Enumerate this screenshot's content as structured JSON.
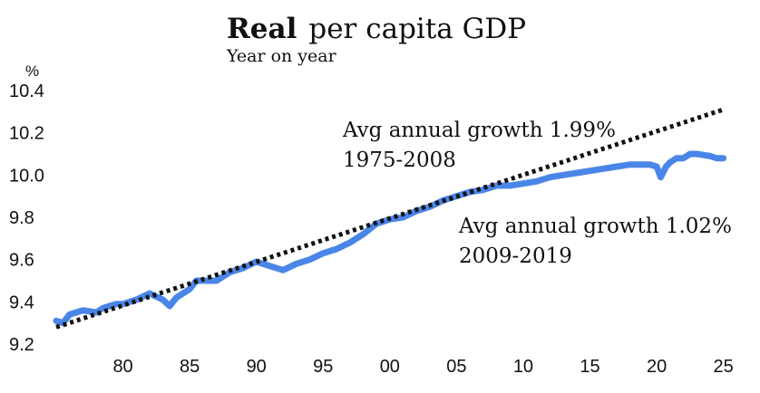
{
  "chart_data": {
    "type": "line",
    "title_bold": "Real",
    "title_rest": "per capita GDP",
    "subtitle": "Year on year",
    "ylabel": "%",
    "ylim": [
      9.2,
      10.4
    ],
    "xlim": [
      1975,
      2025.5
    ],
    "y_ticks": [
      9.2,
      9.4,
      9.6,
      9.8,
      10.0,
      10.2,
      10.4
    ],
    "y_tick_labels": [
      "9.2",
      "9.4",
      "9.6",
      "9.8",
      "10.0",
      "10.2",
      "10.4"
    ],
    "x_ticks": [
      1980,
      1985,
      1990,
      1995,
      2000,
      2005,
      2010,
      2015,
      2020,
      2025
    ],
    "x_tick_labels": [
      "80",
      "85",
      "90",
      "95",
      "00",
      "05",
      "10",
      "15",
      "20",
      "25"
    ],
    "series": [
      {
        "name": "Real per capita GDP",
        "color": "#4a86e8",
        "style": "solid",
        "x": [
          1975,
          1975.5,
          1976,
          1976.5,
          1977,
          1978,
          1978.5,
          1979,
          1979.5,
          1980,
          1981,
          1982,
          1983,
          1983.5,
          1984,
          1985,
          1985.5,
          1986,
          1987,
          1988,
          1989,
          1990,
          1991,
          1992,
          1993,
          1994,
          1995,
          1996,
          1997,
          1998,
          1999,
          2000,
          2001,
          2002,
          2003,
          2004,
          2005,
          2006,
          2007,
          2008,
          2009,
          2010,
          2011,
          2012,
          2013,
          2014,
          2015,
          2016,
          2017,
          2018,
          2019,
          2019.5,
          2020,
          2020.3,
          2020.7,
          2021,
          2021.5,
          2022,
          2022.5,
          2023,
          2024,
          2024.5,
          2025
        ],
        "values": [
          9.31,
          9.3,
          9.34,
          9.35,
          9.36,
          9.35,
          9.37,
          9.38,
          9.39,
          9.39,
          9.41,
          9.44,
          9.41,
          9.38,
          9.42,
          9.46,
          9.5,
          9.5,
          9.5,
          9.54,
          9.56,
          9.59,
          9.57,
          9.55,
          9.58,
          9.6,
          9.63,
          9.65,
          9.68,
          9.72,
          9.77,
          9.79,
          9.8,
          9.83,
          9.85,
          9.88,
          9.9,
          9.92,
          9.93,
          9.95,
          9.95,
          9.96,
          9.97,
          9.99,
          10.0,
          10.01,
          10.02,
          10.03,
          10.04,
          10.05,
          10.05,
          10.05,
          10.04,
          9.99,
          10.04,
          10.06,
          10.08,
          10.08,
          10.1,
          10.1,
          10.09,
          10.08,
          10.08
        ]
      },
      {
        "name": "Trend 1975-2008",
        "color": "#111111",
        "style": "dotted",
        "x": [
          1975,
          2025
        ],
        "values": [
          9.28,
          10.31
        ]
      }
    ],
    "annotations": [
      {
        "lines": [
          "Avg annual growth 1.99%",
          "1975-2008"
        ]
      },
      {
        "lines": [
          "Avg annual growth 1.02%",
          "2009-2019"
        ]
      }
    ]
  }
}
